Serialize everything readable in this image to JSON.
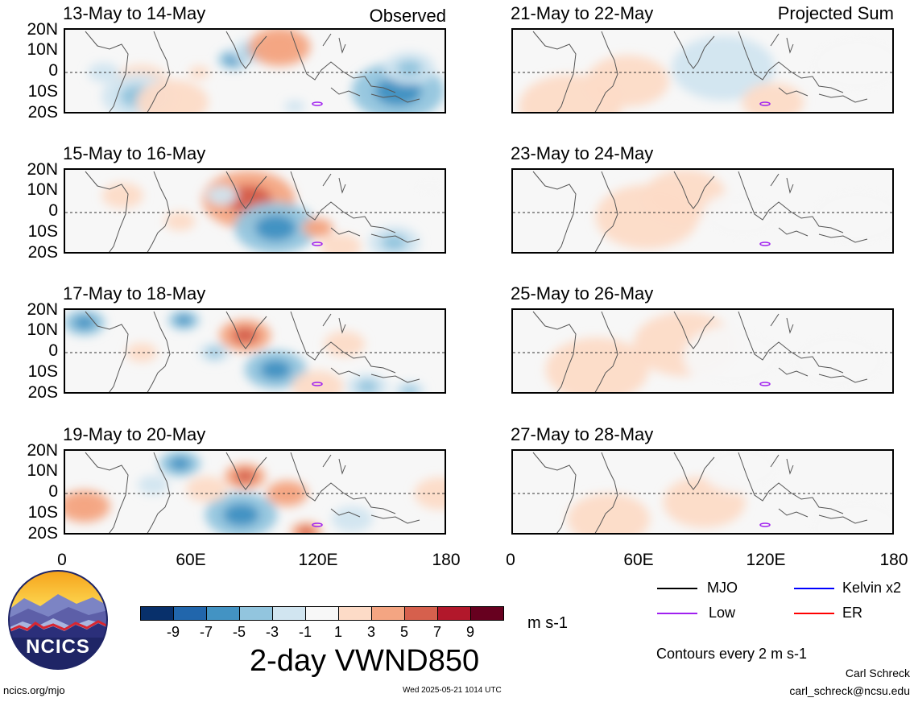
{
  "panels_left": [
    {
      "title": "13-May to 14-May",
      "tag": "Observed"
    },
    {
      "title": "15-May to 16-May",
      "tag": ""
    },
    {
      "title": "17-May to 18-May",
      "tag": ""
    },
    {
      "title": "19-May to 20-May",
      "tag": ""
    }
  ],
  "panels_right": [
    {
      "title": "21-May to 22-May",
      "tag": "Projected Sum"
    },
    {
      "title": "23-May to 24-May",
      "tag": ""
    },
    {
      "title": "25-May to 26-May",
      "tag": ""
    },
    {
      "title": "27-May to 28-May",
      "tag": ""
    }
  ],
  "lat_labels": [
    "20N",
    "10N",
    "0",
    "10S",
    "20S"
  ],
  "lon_labels": [
    "0",
    "60E",
    "120E",
    "180"
  ],
  "legend": {
    "mjo": "MJO",
    "kelvin": "Kelvin x2",
    "low": "Low",
    "er": "ER",
    "contours": "Contours every 2 m s-1",
    "colors": {
      "mjo": "#000000",
      "kelvin": "#0000ff",
      "low": "#a020f0",
      "er": "#ff0000"
    }
  },
  "colorbar": {
    "ticks": [
      "-9",
      "-7",
      "-5",
      "-3",
      "-1",
      "1",
      "3",
      "5",
      "7",
      "9"
    ],
    "colors": [
      "#08306b",
      "#2166ac",
      "#4393c3",
      "#92c5de",
      "#d1e5f0",
      "#f7f7f7",
      "#fddbc7",
      "#f4a582",
      "#d6604d",
      "#b2182b",
      "#67001f"
    ],
    "units": "m s-1"
  },
  "title": "2-day VWND850",
  "logo_text": "NCICS",
  "footer": {
    "url": "ncics.org/mjo",
    "timestamp": "Wed 2025-05-21 1014 UTC",
    "author": "Carl Schreck",
    "email": "carl_schreck@ncsu.edu"
  }
}
